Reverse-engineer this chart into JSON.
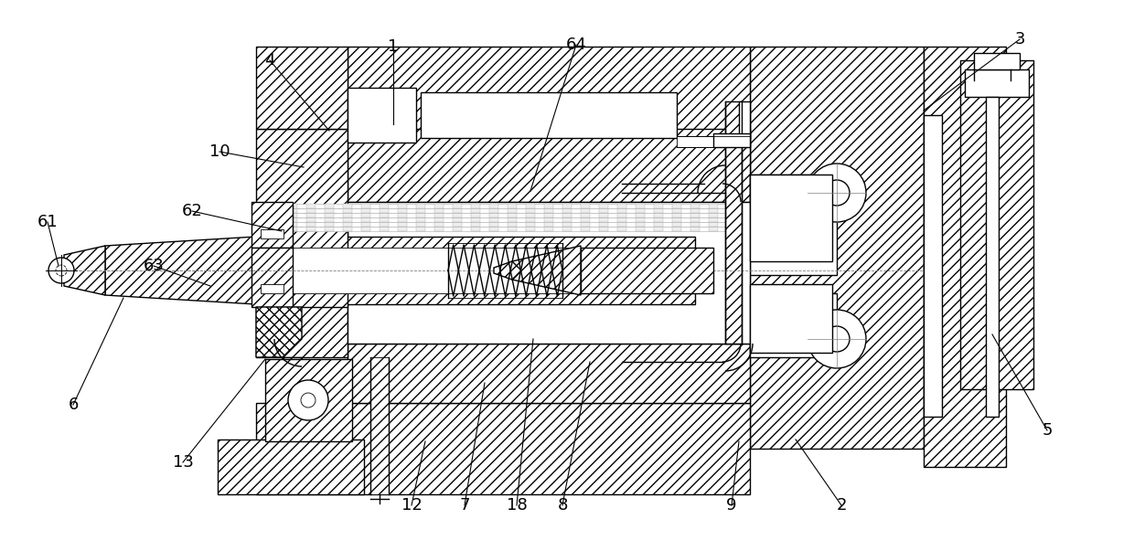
{
  "background_color": "#ffffff",
  "line_color": "#000000",
  "figsize": [
    12.4,
    5.91
  ],
  "dpi": 100,
  "labels_data": [
    [
      "1",
      430,
      540,
      430,
      455
    ],
    [
      "2",
      920,
      38,
      870,
      110
    ],
    [
      "3",
      1115,
      548,
      1010,
      470
    ],
    [
      "4",
      295,
      525,
      360,
      448
    ],
    [
      "5",
      1145,
      120,
      1085,
      225
    ],
    [
      "6",
      80,
      148,
      135,
      265
    ],
    [
      "7",
      508,
      38,
      530,
      172
    ],
    [
      "8",
      615,
      38,
      645,
      195
    ],
    [
      "9",
      800,
      38,
      808,
      108
    ],
    [
      "10",
      240,
      425,
      332,
      408
    ],
    [
      "12",
      450,
      38,
      465,
      108
    ],
    [
      "13",
      200,
      85,
      290,
      198
    ],
    [
      "18",
      565,
      38,
      583,
      220
    ],
    [
      "61",
      52,
      348,
      64,
      300
    ],
    [
      "62",
      210,
      360,
      308,
      338
    ],
    [
      "63",
      168,
      300,
      230,
      278
    ],
    [
      "64",
      630,
      542,
      580,
      382
    ]
  ]
}
